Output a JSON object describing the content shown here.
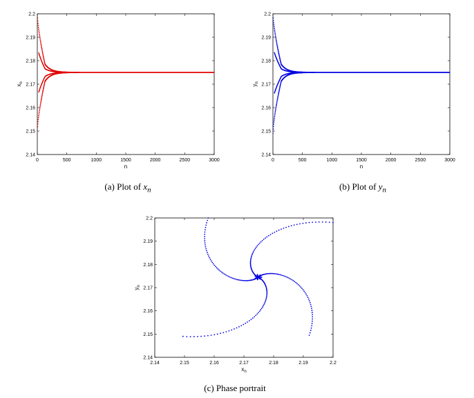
{
  "captions": {
    "a": {
      "prefix": "(a)  Plot of ",
      "var": "x",
      "sub": "n"
    },
    "b": {
      "prefix": "(b)  Plot of ",
      "var": "y",
      "sub": "n"
    },
    "c": {
      "text": "(c)  Phase portrait"
    }
  },
  "chart_data": [
    {
      "type": "scatter",
      "xlabel": "n",
      "ylabel": "x",
      "ylabel_sub": "n",
      "xlim": [
        0,
        3000
      ],
      "ylim": [
        2.14,
        2.2
      ],
      "xticks": [
        0,
        500,
        1000,
        1500,
        2000,
        2500,
        3000
      ],
      "yticks": [
        2.14,
        2.15,
        2.16,
        2.17,
        2.18,
        2.19,
        2.2
      ],
      "color": "#e00000",
      "equilibrium": 2.175,
      "initial_values": [
        2.2,
        2.15
      ],
      "envelope_peak": {
        "n": 130,
        "upper": 2.1785,
        "lower": 2.1712
      },
      "converged_n": 450,
      "grid": false
    },
    {
      "type": "scatter",
      "xlabel": "n",
      "ylabel": "y",
      "ylabel_sub": "n",
      "xlim": [
        0,
        3000
      ],
      "ylim": [
        2.14,
        2.2
      ],
      "xticks": [
        0,
        500,
        1000,
        1500,
        2000,
        2500,
        3000
      ],
      "yticks": [
        2.14,
        2.15,
        2.16,
        2.17,
        2.18,
        2.19,
        2.2
      ],
      "color": "#0000e0",
      "equilibrium": 2.175,
      "initial_values": [
        2.2,
        2.149
      ],
      "envelope_peak": {
        "n": 140,
        "upper": 2.1785,
        "lower": 2.1712
      },
      "converged_n": 450,
      "grid": false
    },
    {
      "type": "scatter",
      "xlabel": "x",
      "xlabel_sub": "n",
      "ylabel": "y",
      "ylabel_sub": "n",
      "xlim": [
        2.14,
        2.2
      ],
      "ylim": [
        2.14,
        2.2
      ],
      "xticks": [
        2.14,
        2.15,
        2.16,
        2.17,
        2.18,
        2.19,
        2.2
      ],
      "yticks": [
        2.14,
        2.15,
        2.16,
        2.17,
        2.18,
        2.19,
        2.2
      ],
      "color": "#0000e0",
      "center": [
        2.1748,
        2.1745
      ],
      "arm_starts": [
        [
          2.158,
          2.2
        ],
        [
          2.2,
          2.198
        ],
        [
          2.192,
          2.1495
        ],
        [
          2.1495,
          2.149
        ]
      ],
      "grid": false
    }
  ]
}
